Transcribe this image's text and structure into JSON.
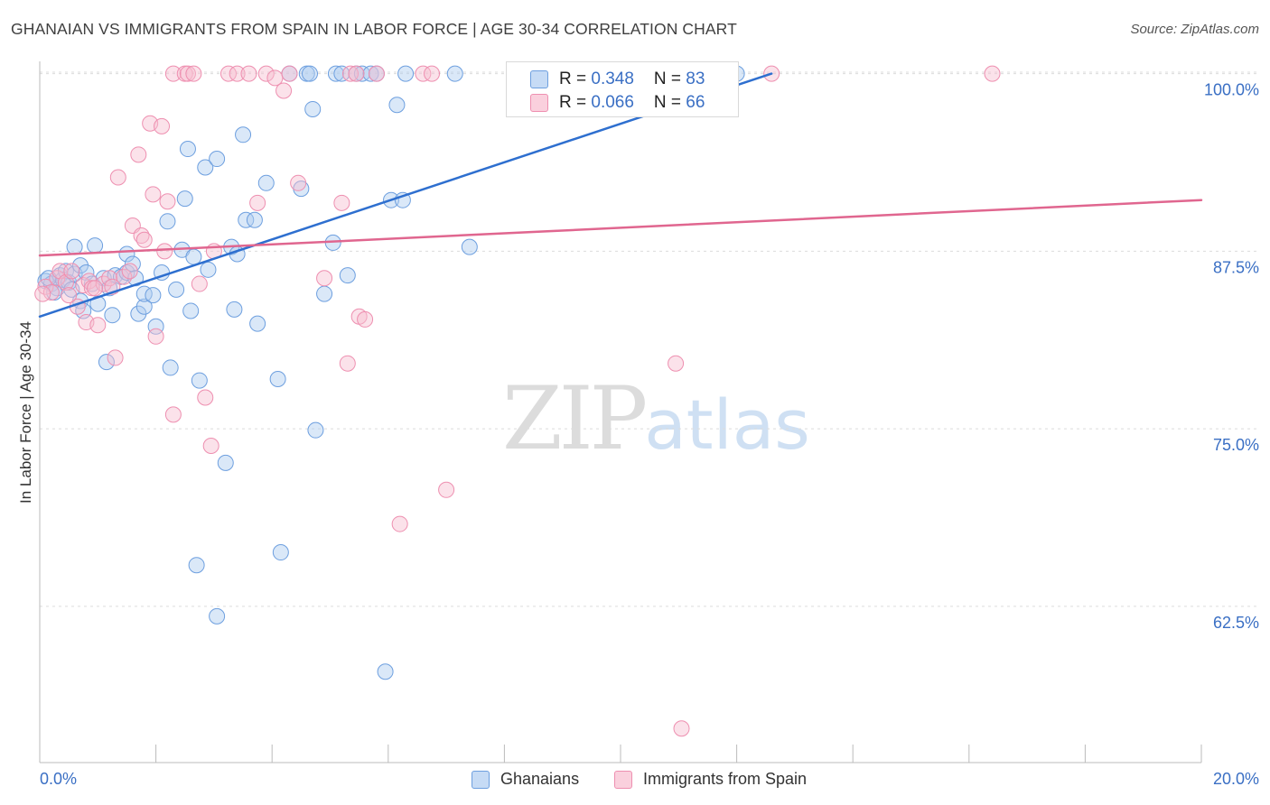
{
  "header": {
    "title": "GHANAIAN VS IMMIGRANTS FROM SPAIN IN LABOR FORCE | AGE 30-34 CORRELATION CHART",
    "source": "Source: ZipAtlas.com"
  },
  "watermark": {
    "zip": "ZIP",
    "atlas": "atlas"
  },
  "legend": {
    "rows": [
      {
        "r_label": "R = ",
        "r_value": "0.348",
        "n_label": "N = ",
        "n_value": "83",
        "color": "#aecbef"
      },
      {
        "r_label": "R = ",
        "r_value": "0.066",
        "n_label": "N = ",
        "n_value": "66",
        "color": "#f7bfd0"
      }
    ]
  },
  "bottom_legend": [
    {
      "label": "Ghanaians",
      "color": "#aecbef"
    },
    {
      "label": "Immigrants from Spain",
      "color": "#f7bfd0"
    }
  ],
  "chart_data": {
    "type": "scatter",
    "title": "GHANAIAN VS IMMIGRANTS FROM SPAIN IN LABOR FORCE | AGE 30-34 CORRELATION CHART",
    "xlabel": "",
    "ylabel": "In Labor Force | Age 30-34",
    "xlim": [
      0,
      20
    ],
    "ylim": [
      51.5,
      101.5
    ],
    "x_tick_labels": [
      {
        "value": 0,
        "label": "0.0%"
      },
      {
        "value": 20,
        "label": "20.0%"
      }
    ],
    "y_tick_labels": [
      {
        "value": 100,
        "label": "100.0%"
      },
      {
        "value": 87.5,
        "label": "87.5%"
      },
      {
        "value": 75,
        "label": "75.0%"
      },
      {
        "value": 62.5,
        "label": "62.5%"
      }
    ],
    "series": [
      {
        "name": "Ghanaians",
        "color": "#6d9fdf",
        "fill": "#aecbef",
        "line_color": "#2e6fcf",
        "trend": {
          "x0": 0,
          "y0": 82.9,
          "x1": 12.6,
          "y1": 100.0
        },
        "points": [
          [
            0.1,
            85.4
          ],
          [
            0.2,
            85.2
          ],
          [
            0.3,
            84.9
          ],
          [
            0.35,
            85.8
          ],
          [
            0.4,
            85.5
          ],
          [
            0.45,
            86.1
          ],
          [
            0.5,
            85.3
          ],
          [
            0.55,
            84.8
          ],
          [
            0.6,
            85.9
          ],
          [
            0.6,
            87.8
          ],
          [
            0.7,
            86.5
          ],
          [
            0.7,
            84.0
          ],
          [
            0.75,
            83.3
          ],
          [
            0.8,
            86.0
          ],
          [
            0.9,
            85.2
          ],
          [
            0.95,
            87.9
          ],
          [
            1.0,
            83.8
          ],
          [
            1.1,
            85.6
          ],
          [
            1.15,
            79.7
          ],
          [
            1.2,
            84.9
          ],
          [
            1.25,
            83.0
          ],
          [
            1.3,
            85.8
          ],
          [
            1.4,
            85.7
          ],
          [
            1.5,
            86.0
          ],
          [
            1.5,
            87.3
          ],
          [
            1.6,
            86.6
          ],
          [
            1.65,
            85.6
          ],
          [
            1.7,
            83.1
          ],
          [
            1.8,
            83.6
          ],
          [
            1.8,
            84.5
          ],
          [
            1.95,
            84.4
          ],
          [
            2.0,
            82.2
          ],
          [
            2.1,
            86.0
          ],
          [
            2.2,
            89.6
          ],
          [
            2.25,
            79.3
          ],
          [
            2.35,
            84.8
          ],
          [
            2.45,
            87.6
          ],
          [
            2.5,
            91.2
          ],
          [
            2.55,
            94.7
          ],
          [
            2.6,
            83.3
          ],
          [
            2.65,
            87.1
          ],
          [
            2.75,
            78.4
          ],
          [
            2.85,
            93.4
          ],
          [
            2.9,
            86.2
          ],
          [
            3.05,
            94.0
          ],
          [
            3.05,
            61.8
          ],
          [
            3.2,
            72.6
          ],
          [
            3.3,
            87.8
          ],
          [
            3.35,
            83.4
          ],
          [
            3.4,
            87.3
          ],
          [
            3.5,
            95.7
          ],
          [
            3.55,
            89.7
          ],
          [
            3.7,
            89.7
          ],
          [
            3.75,
            82.4
          ],
          [
            3.9,
            92.3
          ],
          [
            4.1,
            78.5
          ],
          [
            4.15,
            66.3
          ],
          [
            4.3,
            100.0
          ],
          [
            4.5,
            91.9
          ],
          [
            4.6,
            100.0
          ],
          [
            4.65,
            100.0
          ],
          [
            4.7,
            97.5
          ],
          [
            4.75,
            74.9
          ],
          [
            4.9,
            84.5
          ],
          [
            5.05,
            88.1
          ],
          [
            5.1,
            100.0
          ],
          [
            5.2,
            100.0
          ],
          [
            5.3,
            85.8
          ],
          [
            5.45,
            100.0
          ],
          [
            5.55,
            100.0
          ],
          [
            5.7,
            100.0
          ],
          [
            5.8,
            100.0
          ],
          [
            5.95,
            57.9
          ],
          [
            6.05,
            91.1
          ],
          [
            6.15,
            97.8
          ],
          [
            6.25,
            91.1
          ],
          [
            6.3,
            100.0
          ],
          [
            7.15,
            100.0
          ],
          [
            7.4,
            87.8
          ],
          [
            12.0,
            100.0
          ],
          [
            2.7,
            65.4
          ],
          [
            0.15,
            85.6
          ],
          [
            0.25,
            84.6
          ]
        ]
      },
      {
        "name": "Immigrants from Spain",
        "color": "#ee8fb0",
        "fill": "#f7bfd0",
        "line_color": "#e0668f",
        "trend": {
          "x0": 0,
          "y0": 87.2,
          "x1": 20,
          "y1": 91.1
        },
        "points": [
          [
            0.1,
            85.0
          ],
          [
            0.2,
            84.6
          ],
          [
            0.3,
            85.6
          ],
          [
            0.35,
            86.1
          ],
          [
            0.45,
            85.3
          ],
          [
            0.55,
            86.1
          ],
          [
            0.65,
            83.6
          ],
          [
            0.75,
            85.1
          ],
          [
            0.8,
            82.5
          ],
          [
            0.85,
            85.4
          ],
          [
            0.9,
            84.9
          ],
          [
            1.0,
            82.3
          ],
          [
            1.1,
            85.2
          ],
          [
            1.2,
            85.6
          ],
          [
            1.3,
            80.0
          ],
          [
            1.35,
            92.7
          ],
          [
            1.45,
            85.7
          ],
          [
            1.55,
            86.1
          ],
          [
            1.6,
            89.3
          ],
          [
            1.7,
            94.3
          ],
          [
            1.75,
            88.6
          ],
          [
            1.8,
            88.3
          ],
          [
            1.9,
            96.5
          ],
          [
            1.95,
            91.5
          ],
          [
            2.0,
            81.5
          ],
          [
            2.1,
            96.3
          ],
          [
            2.15,
            87.5
          ],
          [
            2.2,
            91.0
          ],
          [
            2.3,
            76.0
          ],
          [
            2.3,
            100.0
          ],
          [
            2.5,
            100.0
          ],
          [
            2.55,
            100.0
          ],
          [
            2.65,
            100.0
          ],
          [
            2.75,
            85.2
          ],
          [
            2.85,
            77.2
          ],
          [
            2.95,
            73.8
          ],
          [
            3.0,
            87.5
          ],
          [
            3.25,
            100.0
          ],
          [
            3.4,
            100.0
          ],
          [
            3.75,
            90.9
          ],
          [
            3.9,
            100.0
          ],
          [
            4.05,
            99.7
          ],
          [
            4.2,
            98.8
          ],
          [
            4.3,
            100.0
          ],
          [
            4.45,
            92.3
          ],
          [
            4.9,
            85.6
          ],
          [
            5.2,
            90.9
          ],
          [
            5.3,
            79.6
          ],
          [
            5.35,
            100.0
          ],
          [
            5.45,
            100.0
          ],
          [
            5.5,
            82.9
          ],
          [
            5.6,
            82.7
          ],
          [
            5.8,
            100.0
          ],
          [
            6.2,
            68.3
          ],
          [
            6.6,
            100.0
          ],
          [
            6.75,
            100.0
          ],
          [
            7.0,
            70.7
          ],
          [
            10.95,
            79.6
          ],
          [
            11.05,
            53.9
          ],
          [
            16.4,
            100.0
          ],
          [
            0.5,
            84.4
          ],
          [
            0.05,
            84.5
          ],
          [
            0.95,
            84.9
          ],
          [
            1.25,
            85.0
          ],
          [
            12.6,
            100.0
          ],
          [
            3.6,
            100.0
          ]
        ]
      }
    ]
  }
}
